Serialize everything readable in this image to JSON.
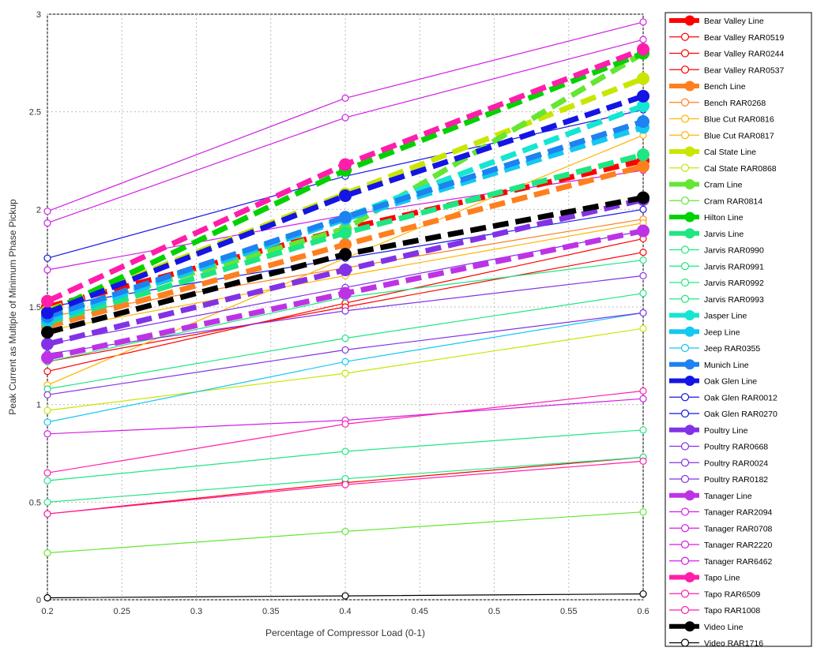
{
  "chart_data": {
    "type": "line",
    "title": "",
    "xlabel": "Percentage of Compressor Load (0-1)",
    "ylabel": "Peak Current as Multiple of Minimum Phase Pickup",
    "xlim": [
      0.2,
      0.6
    ],
    "ylim": [
      0,
      3
    ],
    "grid": true,
    "legend_position": "right",
    "x": [
      0.2,
      0.4,
      0.6
    ],
    "x_ticks": [
      "0.2",
      "0.25",
      "0.3",
      "0.35",
      "0.4",
      "0.45",
      "0.5",
      "0.55",
      "0.6"
    ],
    "y_ticks": [
      "0",
      "0.5",
      "1",
      "1.5",
      "2",
      "2.5",
      "3"
    ],
    "series": [
      {
        "name": "Bear Valley Line",
        "color": "#ff0000",
        "style": "line-dashed",
        "values": [
          1.5,
          1.9,
          2.25
        ]
      },
      {
        "name": "Bear Valley RAR0519",
        "color": "#ff0000",
        "style": "marker",
        "values": [
          0.44,
          0.6,
          0.73
        ]
      },
      {
        "name": "Bear Valley RAR0244",
        "color": "#ff0000",
        "style": "marker",
        "values": [
          1.17,
          1.52,
          1.85
        ]
      },
      {
        "name": "Bear Valley RAR0537",
        "color": "#ff0000",
        "style": "marker",
        "values": [
          1.22,
          1.5,
          1.78
        ]
      },
      {
        "name": "Bench Line",
        "color": "#ff7f1e",
        "style": "line-dashed",
        "values": [
          1.4,
          1.82,
          2.22
        ]
      },
      {
        "name": "Bench RAR0268",
        "color": "#ff7f1e",
        "style": "marker",
        "values": [
          1.45,
          1.7,
          1.95
        ]
      },
      {
        "name": "Blue Cut RAR0816",
        "color": "#ffb400",
        "style": "marker",
        "values": [
          1.1,
          1.75,
          2.38
        ]
      },
      {
        "name": "Blue Cut RAR0817",
        "color": "#ffb400",
        "style": "marker",
        "values": [
          1.38,
          1.66,
          1.93
        ]
      },
      {
        "name": "Cal State Line",
        "color": "#c8e600",
        "style": "line-dashed",
        "values": [
          1.48,
          2.08,
          2.67
        ]
      },
      {
        "name": "Cal State RAR0868",
        "color": "#c8e600",
        "style": "marker",
        "values": [
          0.97,
          1.16,
          1.39
        ]
      },
      {
        "name": "Cram Line",
        "color": "#64e632",
        "style": "line-dashed",
        "values": [
          1.46,
          1.9,
          2.8
        ]
      },
      {
        "name": "Cram RAR0814",
        "color": "#64e632",
        "style": "marker",
        "values": [
          0.24,
          0.35,
          0.45
        ]
      },
      {
        "name": "Hilton Line",
        "color": "#00d200",
        "style": "line-dashed",
        "values": [
          1.47,
          2.2,
          2.8
        ]
      },
      {
        "name": "Jarvis Line",
        "color": "#1ee682",
        "style": "line-dashed",
        "values": [
          1.42,
          1.88,
          2.28
        ]
      },
      {
        "name": "Jarvis RAR0990",
        "color": "#1ee682",
        "style": "marker",
        "values": [
          1.08,
          1.34,
          1.57
        ]
      },
      {
        "name": "Jarvis RAR0991",
        "color": "#1ee682",
        "style": "marker",
        "values": [
          0.5,
          0.62,
          0.73
        ]
      },
      {
        "name": "Jarvis RAR0992",
        "color": "#1ee682",
        "style": "marker",
        "values": [
          0.61,
          0.76,
          0.87
        ]
      },
      {
        "name": "Jarvis RAR0993",
        "color": "#1ee682",
        "style": "marker",
        "values": [
          1.22,
          1.55,
          1.74
        ]
      },
      {
        "name": "Jasper Line",
        "color": "#14e6d2",
        "style": "line-dashed",
        "values": [
          1.44,
          1.96,
          2.53
        ]
      },
      {
        "name": "Jeep Line",
        "color": "#14c8f0",
        "style": "line-dashed",
        "values": [
          1.43,
          1.95,
          2.42
        ]
      },
      {
        "name": "Jeep RAR0355",
        "color": "#14c8f0",
        "style": "marker",
        "values": [
          0.91,
          1.22,
          1.47
        ]
      },
      {
        "name": "Munich Line",
        "color": "#1e82f0",
        "style": "line-dashed",
        "values": [
          1.45,
          1.96,
          2.45
        ]
      },
      {
        "name": "Oak Glen Line",
        "color": "#1414e6",
        "style": "line-dashed",
        "values": [
          1.47,
          2.07,
          2.58
        ]
      },
      {
        "name": "Oak Glen RAR0012",
        "color": "#1414e6",
        "style": "marker",
        "values": [
          1.75,
          2.17,
          2.51
        ]
      },
      {
        "name": "Oak Glen RAR0270",
        "color": "#1414e6",
        "style": "marker",
        "values": [
          1.5,
          1.75,
          2.0
        ]
      },
      {
        "name": "Poultry Line",
        "color": "#8232e6",
        "style": "line-dashed",
        "values": [
          1.31,
          1.69,
          2.05
        ]
      },
      {
        "name": "Poultry RAR0668",
        "color": "#8232e6",
        "style": "marker",
        "values": [
          1.05,
          1.28,
          1.47
        ]
      },
      {
        "name": "Poultry RAR0024",
        "color": "#8232e6",
        "style": "marker",
        "values": [
          1.26,
          1.48,
          1.66
        ]
      },
      {
        "name": "Poultry RAR0182",
        "color": "#8232e6",
        "style": "marker",
        "values": [
          1.31,
          1.6,
          1.89
        ]
      },
      {
        "name": "Tanager Line",
        "color": "#be32e6",
        "style": "line-dashed",
        "values": [
          1.24,
          1.57,
          1.89
        ]
      },
      {
        "name": "Tanager RAR2094",
        "color": "#d21ee6",
        "style": "marker",
        "values": [
          1.99,
          2.57,
          2.96
        ]
      },
      {
        "name": "Tanager RAR0708",
        "color": "#d21ee6",
        "style": "marker",
        "values": [
          1.93,
          2.47,
          2.87
        ]
      },
      {
        "name": "Tanager RAR2220",
        "color": "#d21ee6",
        "style": "marker",
        "values": [
          1.69,
          1.97,
          2.2
        ]
      },
      {
        "name": "Tanager RAR6462",
        "color": "#d21ee6",
        "style": "marker",
        "values": [
          0.85,
          0.92,
          1.03
        ]
      },
      {
        "name": "Tapo Line",
        "color": "#ff1eaa",
        "style": "line-dashed",
        "values": [
          1.53,
          2.23,
          2.82
        ]
      },
      {
        "name": "Tapo RAR6509",
        "color": "#ff1eaa",
        "style": "marker",
        "values": [
          0.65,
          0.9,
          1.07
        ]
      },
      {
        "name": "Tapo RAR1008",
        "color": "#ff1eaa",
        "style": "marker",
        "values": [
          0.44,
          0.59,
          0.71
        ]
      },
      {
        "name": "Video Line",
        "color": "#000000",
        "style": "line-dashed",
        "values": [
          1.37,
          1.77,
          2.06
        ]
      },
      {
        "name": "Video RAR1716",
        "color": "#000000",
        "style": "marker",
        "values": [
          0.01,
          0.02,
          0.03
        ]
      }
    ]
  }
}
